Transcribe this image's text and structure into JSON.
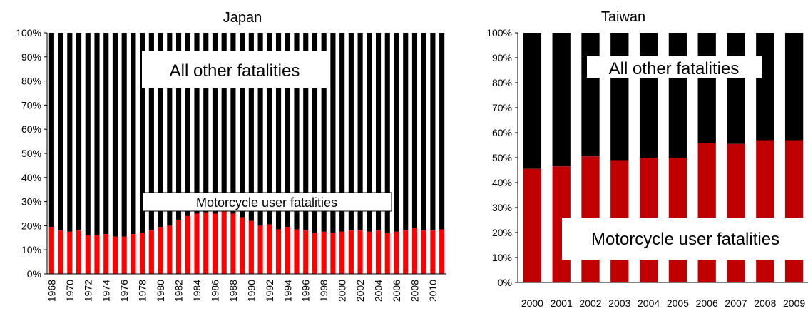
{
  "colors": {
    "other": "#000000",
    "japan_moto": "#ff0000",
    "taiwan_moto": "#c00000"
  },
  "chart_data": [
    {
      "type": "bar",
      "stacked": true,
      "title": "Japan",
      "categories": [
        "1968",
        "1969",
        "1970",
        "1971",
        "1972",
        "1973",
        "1974",
        "1975",
        "1976",
        "1977",
        "1978",
        "1979",
        "1980",
        "1981",
        "1982",
        "1983",
        "1984",
        "1985",
        "1986",
        "1987",
        "1988",
        "1989",
        "1990",
        "1991",
        "1992",
        "1993",
        "1994",
        "1995",
        "1996",
        "1997",
        "1998",
        "1999",
        "2000",
        "2001",
        "2002",
        "2003",
        "2004",
        "2005",
        "2006",
        "2007",
        "2008",
        "2009",
        "2010",
        "2011"
      ],
      "tick_labels": [
        "1968",
        "1970",
        "1972",
        "1974",
        "1976",
        "1978",
        "1980",
        "1982",
        "1984",
        "1986",
        "1988",
        "1990",
        "1992",
        "1994",
        "1996",
        "1998",
        "2000",
        "2002",
        "2004",
        "2006",
        "2008",
        "2010"
      ],
      "y_tick_labels": [
        "0%",
        "10%",
        "20%",
        "30%",
        "40%",
        "50%",
        "60%",
        "70%",
        "80%",
        "90%",
        "100%"
      ],
      "ylim": [
        0,
        100
      ],
      "series": [
        {
          "name": "Motorcycle user fatalities",
          "values": [
            19.5,
            18,
            17.5,
            18,
            16,
            16,
            16.5,
            15.5,
            15.5,
            16.5,
            17,
            18,
            19.5,
            20,
            22.5,
            24,
            25,
            25.5,
            25,
            26,
            25,
            23.5,
            22,
            20,
            20.5,
            18.5,
            19.5,
            18.5,
            18,
            17,
            17.5,
            17,
            17.5,
            18,
            18,
            17.5,
            18,
            17,
            17.5,
            18,
            19,
            18,
            18,
            18.5
          ]
        },
        {
          "name": "All other fatalities",
          "values": [
            80.5,
            82,
            82.5,
            82,
            84,
            84,
            83.5,
            84.5,
            84.5,
            83.5,
            83,
            82,
            80.5,
            80,
            77.5,
            76,
            75,
            74.5,
            75,
            74,
            75,
            76.5,
            78,
            80,
            79.5,
            81.5,
            80.5,
            81.5,
            82,
            83,
            82.5,
            83,
            82.5,
            82,
            82,
            82.5,
            82,
            83,
            82.5,
            82,
            81,
            82,
            82,
            81.5
          ]
        }
      ],
      "annotations": [
        "All other fatalities",
        "Motorcycle user fatalities"
      ]
    },
    {
      "type": "bar",
      "stacked": true,
      "title": "Taiwan",
      "categories": [
        "2000",
        "2001",
        "2002",
        "2003",
        "2004",
        "2005",
        "2006",
        "2007",
        "2008",
        "2009"
      ],
      "y_tick_labels": [
        "0%",
        "10%",
        "20%",
        "30%",
        "40%",
        "50%",
        "60%",
        "70%",
        "80%",
        "90%",
        "100%"
      ],
      "ylim": [
        0,
        100
      ],
      "series": [
        {
          "name": "Motorcycle user fatalities",
          "values": [
            45.5,
            46.5,
            50.5,
            49,
            50,
            50,
            56,
            55.5,
            57,
            57
          ]
        },
        {
          "name": "All other fatalities",
          "values": [
            54.5,
            53.5,
            49.5,
            51,
            50,
            50,
            44,
            44.5,
            43,
            43
          ]
        }
      ],
      "annotations": [
        "All other fatalities",
        "Motorcycle user fatalities"
      ]
    }
  ]
}
